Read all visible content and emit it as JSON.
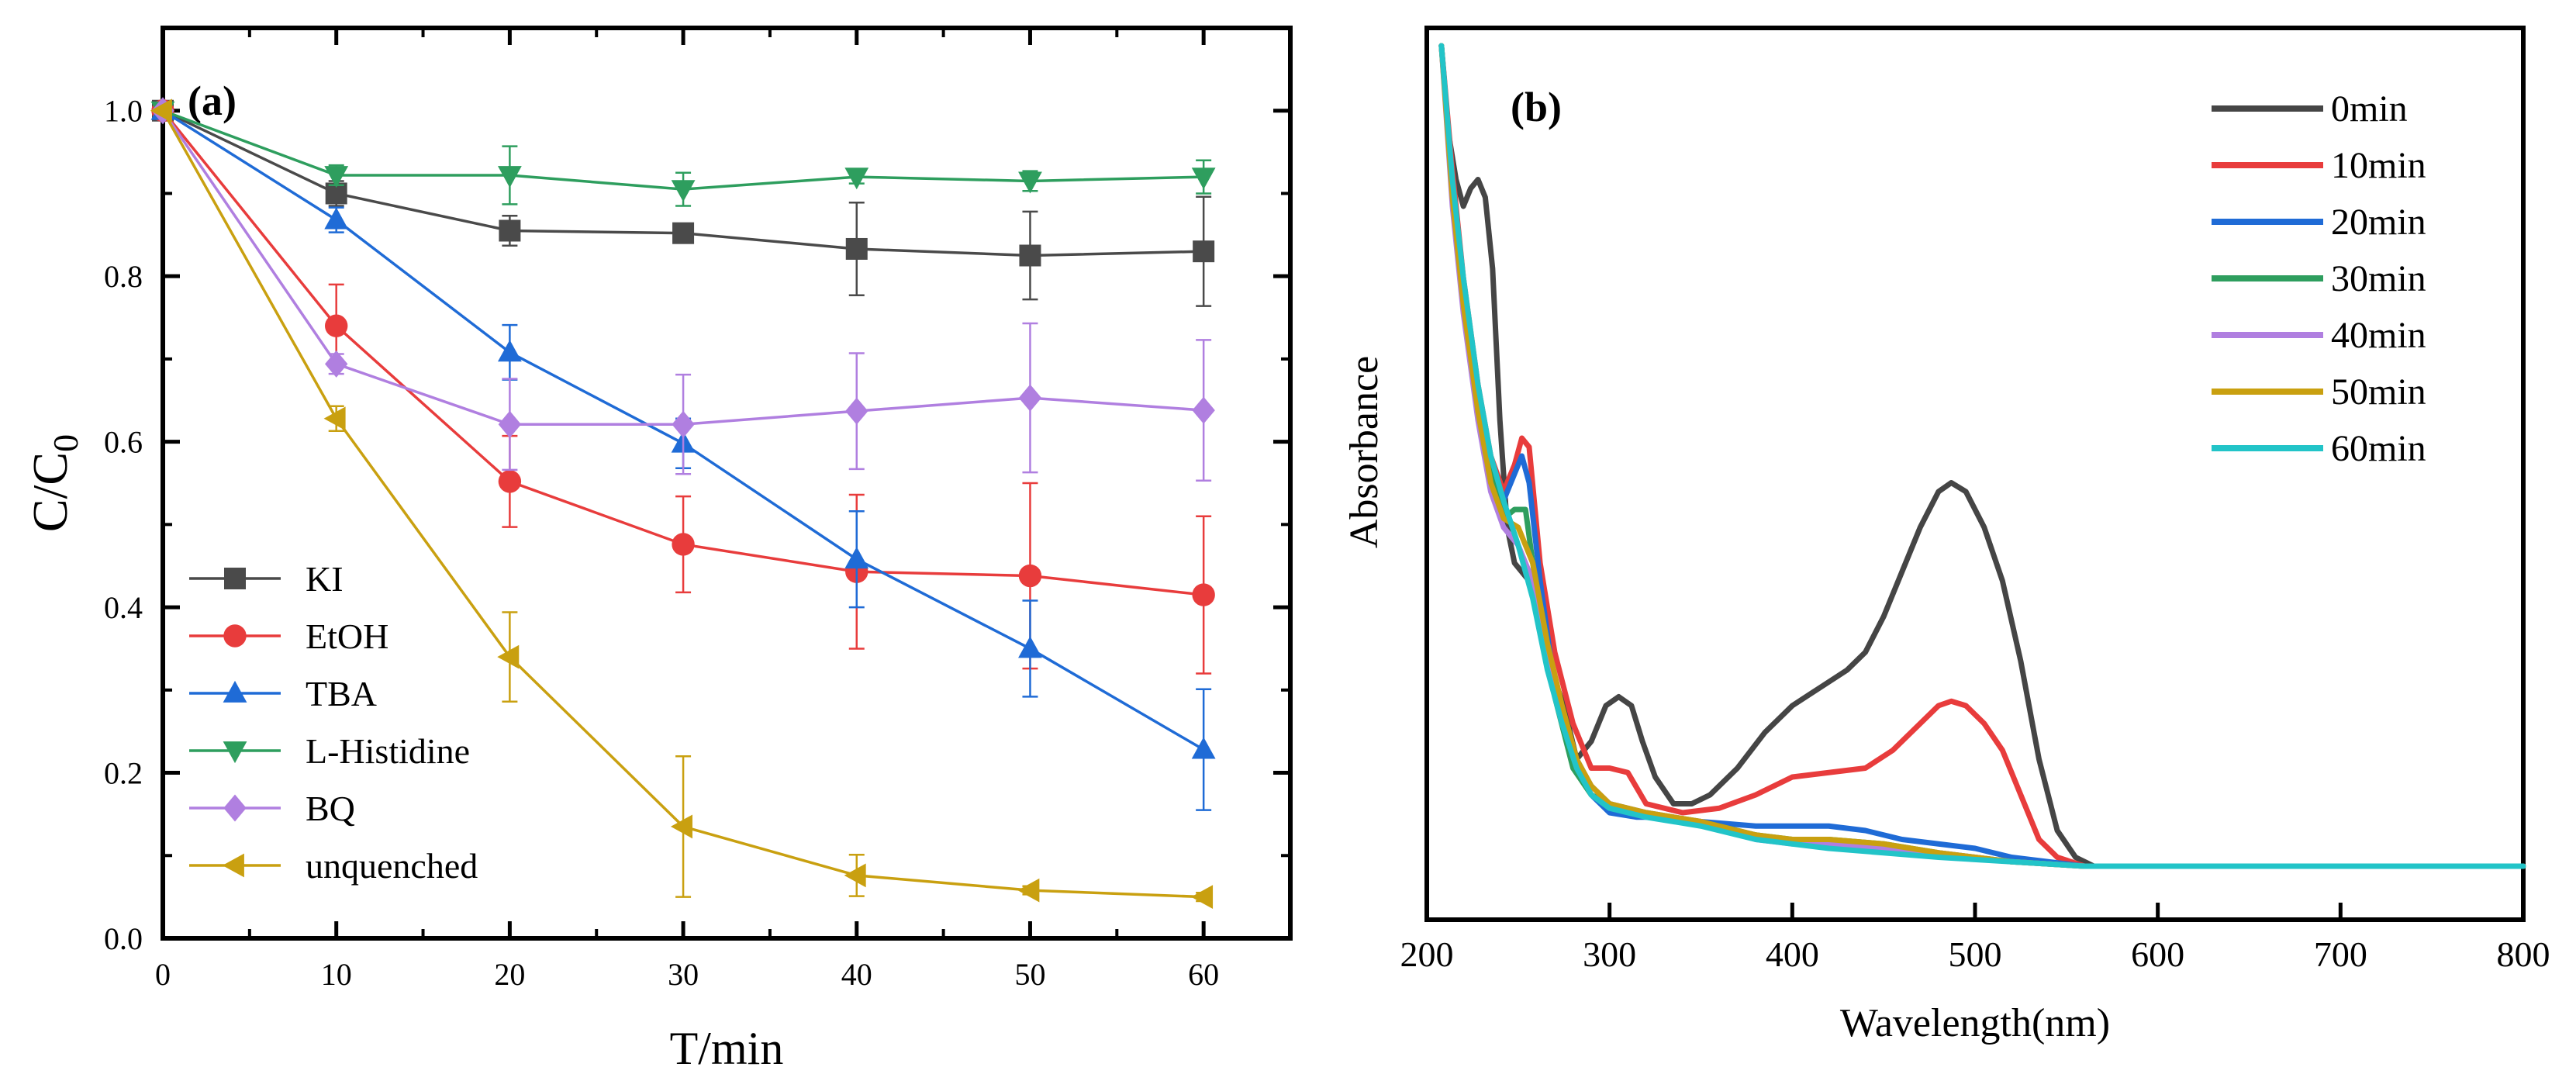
{
  "chart_data": [
    {
      "type": "line",
      "panel_label": "(a)",
      "xlabel": "T/min",
      "ylabel": "C/C",
      "ylabel_sub": "0",
      "xlim": [
        0,
        65
      ],
      "ylim": [
        0,
        1.1
      ],
      "x_ticks": [
        0,
        10,
        20,
        30,
        40,
        50,
        60
      ],
      "y_ticks": [
        0.0,
        0.2,
        0.4,
        0.6,
        0.8,
        1.0
      ],
      "x_tick_labels": [
        "0",
        "10",
        "20",
        "30",
        "40",
        "50",
        "60"
      ],
      "y_tick_labels": [
        "0.0",
        "0.2",
        "0.4",
        "0.6",
        "0.8",
        "1.0"
      ],
      "x": [
        0,
        10,
        20,
        30,
        40,
        50,
        60
      ],
      "legend_position": "left-bottom",
      "series": [
        {
          "name": "KI",
          "color": "#4a4a4a",
          "marker": "square",
          "values": [
            1.0,
            0.9,
            0.855,
            0.852,
            0.833,
            0.825,
            0.83
          ],
          "errors": [
            0,
            0.015,
            0.018,
            0.005,
            0.056,
            0.053,
            0.066
          ]
        },
        {
          "name": "EtOH",
          "color": "#e83c3c",
          "marker": "circle",
          "values": [
            1.0,
            0.74,
            0.552,
            0.476,
            0.443,
            0.438,
            0.415
          ],
          "errors": [
            0,
            0.05,
            0.055,
            0.058,
            0.093,
            0.112,
            0.095
          ]
        },
        {
          "name": "TBA",
          "color": "#1f6bd6",
          "marker": "triangle-up",
          "values": [
            1.0,
            0.868,
            0.708,
            0.598,
            0.458,
            0.35,
            0.228
          ],
          "errors": [
            0,
            0.015,
            0.033,
            0.03,
            0.058,
            0.058,
            0.073
          ]
        },
        {
          "name": "L-Histidine",
          "color": "#2e9e5e",
          "marker": "triangle-down",
          "values": [
            1.0,
            0.922,
            0.922,
            0.905,
            0.92,
            0.915,
            0.92
          ],
          "errors": [
            0,
            0.012,
            0.035,
            0.02,
            0.008,
            0.012,
            0.02
          ]
        },
        {
          "name": "BQ",
          "color": "#b07fe0",
          "marker": "diamond",
          "values": [
            1.0,
            0.694,
            0.621,
            0.621,
            0.637,
            0.653,
            0.638
          ],
          "errors": [
            0,
            0.012,
            0.055,
            0.06,
            0.07,
            0.09,
            0.085
          ]
        },
        {
          "name": "unquenched",
          "color": "#c9a010",
          "marker": "triangle-left",
          "values": [
            1.0,
            0.628,
            0.34,
            0.135,
            0.076,
            0.058,
            0.05
          ],
          "errors": [
            0,
            0.015,
            0.054,
            0.085,
            0.025,
            0.005,
            0.005
          ]
        }
      ]
    },
    {
      "type": "line",
      "panel_label": "(b)",
      "xlabel": "Wavelength(nm)",
      "ylabel": "Absorbance",
      "xlim": [
        200,
        800
      ],
      "ylim": [
        0,
        1.0
      ],
      "x_ticks": [
        200,
        300,
        400,
        500,
        600,
        700,
        800
      ],
      "x_tick_labels": [
        "200",
        "300",
        "400",
        "500",
        "600",
        "700",
        "800"
      ],
      "legend_position": "top-right",
      "series": [
        {
          "name": "0min",
          "color": "#454545",
          "x": [
            208,
            212,
            216,
            220,
            224,
            228,
            232,
            236,
            240,
            244,
            248,
            252,
            256,
            262,
            268,
            275,
            282,
            290,
            298,
            305,
            312,
            318,
            325,
            335,
            345,
            355,
            370,
            385,
            400,
            415,
            430,
            440,
            450,
            460,
            470,
            480,
            487,
            495,
            505,
            515,
            525,
            535,
            545,
            555,
            565,
            580,
            600,
            650,
            700,
            750,
            800
          ],
          "values": [
            0.98,
            0.88,
            0.83,
            0.8,
            0.82,
            0.83,
            0.81,
            0.73,
            0.56,
            0.44,
            0.4,
            0.39,
            0.38,
            0.33,
            0.28,
            0.24,
            0.18,
            0.2,
            0.24,
            0.25,
            0.24,
            0.2,
            0.16,
            0.13,
            0.13,
            0.14,
            0.17,
            0.21,
            0.24,
            0.26,
            0.28,
            0.3,
            0.34,
            0.39,
            0.44,
            0.48,
            0.49,
            0.48,
            0.44,
            0.38,
            0.29,
            0.18,
            0.1,
            0.07,
            0.06,
            0.06,
            0.06,
            0.06,
            0.06,
            0.06,
            0.06
          ]
        },
        {
          "name": "10min",
          "color": "#e83c3c",
          "x": [
            208,
            214,
            220,
            228,
            235,
            242,
            248,
            252,
            256,
            262,
            270,
            280,
            290,
            300,
            310,
            320,
            330,
            340,
            360,
            380,
            400,
            420,
            440,
            455,
            470,
            480,
            487,
            495,
            505,
            515,
            525,
            535,
            545,
            560,
            580,
            600,
            650,
            700,
            750,
            800
          ],
          "values": [
            0.98,
            0.84,
            0.72,
            0.6,
            0.52,
            0.48,
            0.51,
            0.54,
            0.53,
            0.4,
            0.3,
            0.22,
            0.17,
            0.17,
            0.165,
            0.13,
            0.125,
            0.12,
            0.125,
            0.14,
            0.16,
            0.165,
            0.17,
            0.19,
            0.22,
            0.24,
            0.245,
            0.24,
            0.22,
            0.19,
            0.14,
            0.09,
            0.07,
            0.06,
            0.06,
            0.06,
            0.06,
            0.06,
            0.06,
            0.06
          ]
        },
        {
          "name": "20min",
          "color": "#1f6bd6",
          "x": [
            208,
            214,
            220,
            228,
            235,
            242,
            248,
            252,
            256,
            262,
            270,
            280,
            290,
            300,
            315,
            330,
            350,
            380,
            400,
            420,
            440,
            460,
            480,
            500,
            520,
            540,
            560,
            600,
            700,
            800
          ],
          "values": [
            0.98,
            0.82,
            0.7,
            0.58,
            0.5,
            0.47,
            0.5,
            0.52,
            0.49,
            0.38,
            0.26,
            0.18,
            0.14,
            0.12,
            0.115,
            0.115,
            0.11,
            0.105,
            0.105,
            0.105,
            0.1,
            0.09,
            0.085,
            0.08,
            0.07,
            0.065,
            0.06,
            0.06,
            0.06,
            0.06
          ]
        },
        {
          "name": "30min",
          "color": "#2e9e5e",
          "x": [
            208,
            214,
            220,
            228,
            235,
            242,
            248,
            254,
            258,
            264,
            270,
            280,
            290,
            300,
            320,
            350,
            380,
            400,
            420,
            450,
            480,
            520,
            560,
            600,
            700,
            800
          ],
          "values": [
            0.98,
            0.82,
            0.7,
            0.58,
            0.5,
            0.45,
            0.46,
            0.46,
            0.4,
            0.32,
            0.25,
            0.17,
            0.14,
            0.13,
            0.12,
            0.11,
            0.095,
            0.09,
            0.09,
            0.085,
            0.075,
            0.065,
            0.06,
            0.06,
            0.06,
            0.06
          ]
        },
        {
          "name": "40min",
          "color": "#b07fe0",
          "x": [
            208,
            214,
            220,
            228,
            235,
            242,
            250,
            258,
            266,
            274,
            282,
            290,
            300,
            320,
            350,
            380,
            400,
            420,
            450,
            480,
            520,
            560,
            600,
            700,
            800
          ],
          "values": [
            0.98,
            0.8,
            0.68,
            0.56,
            0.48,
            0.44,
            0.42,
            0.38,
            0.3,
            0.23,
            0.18,
            0.15,
            0.13,
            0.12,
            0.11,
            0.09,
            0.085,
            0.085,
            0.08,
            0.075,
            0.065,
            0.06,
            0.06,
            0.06,
            0.06
          ]
        },
        {
          "name": "50min",
          "color": "#c9a010",
          "x": [
            208,
            214,
            220,
            228,
            235,
            242,
            250,
            258,
            266,
            274,
            282,
            290,
            300,
            320,
            350,
            380,
            400,
            420,
            450,
            480,
            520,
            560,
            600,
            700,
            800
          ],
          "values": [
            0.98,
            0.81,
            0.69,
            0.57,
            0.49,
            0.45,
            0.44,
            0.4,
            0.31,
            0.24,
            0.18,
            0.15,
            0.13,
            0.12,
            0.11,
            0.095,
            0.09,
            0.09,
            0.085,
            0.075,
            0.065,
            0.06,
            0.06,
            0.06,
            0.06
          ]
        },
        {
          "name": "60min",
          "color": "#22c4c8",
          "x": [
            208,
            214,
            220,
            228,
            235,
            242,
            250,
            258,
            266,
            274,
            282,
            290,
            300,
            320,
            350,
            380,
            400,
            420,
            450,
            480,
            520,
            560,
            600,
            700,
            800
          ],
          "values": [
            0.98,
            0.83,
            0.72,
            0.6,
            0.52,
            0.47,
            0.42,
            0.36,
            0.28,
            0.22,
            0.17,
            0.14,
            0.125,
            0.115,
            0.105,
            0.09,
            0.085,
            0.08,
            0.075,
            0.07,
            0.065,
            0.06,
            0.06,
            0.06,
            0.06
          ]
        }
      ]
    }
  ]
}
